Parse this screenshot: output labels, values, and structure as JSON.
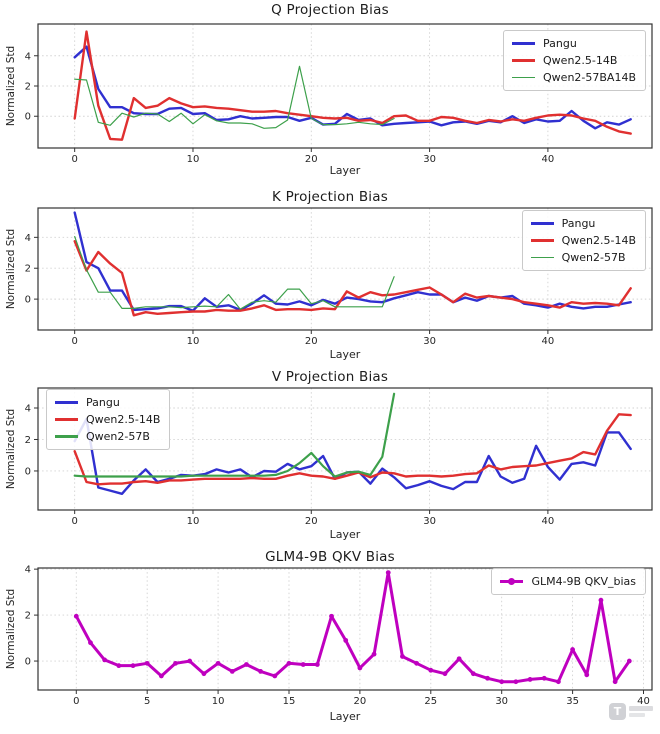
{
  "page": {
    "background": "#ffffff"
  },
  "watermark": {
    "label": "T"
  },
  "chart_data": [
    {
      "id": "q-projection-bias",
      "type": "line",
      "title": "Q Projection Bias",
      "xlabel": "Layer",
      "ylabel": "Normalized Std",
      "x_ticks": [
        0,
        10,
        20,
        30,
        40
      ],
      "y_ticks": [
        0,
        2,
        4
      ],
      "x_domain": [
        -3.1,
        48.8
      ],
      "y_domain": [
        -2.1,
        6.1
      ],
      "grid": true,
      "legend_position": "top-right",
      "series": [
        {
          "name": "Pangu",
          "color": "#3030d0",
          "width": 2.4,
          "values": [
            3.9,
            4.6,
            1.8,
            0.6,
            0.6,
            0.2,
            0.15,
            0.15,
            0.5,
            0.55,
            0.15,
            0.2,
            -0.25,
            -0.2,
            0.0,
            -0.15,
            -0.1,
            -0.05,
            -0.05,
            -0.3,
            -0.1,
            -0.55,
            -0.5,
            0.15,
            -0.25,
            -0.15,
            -0.6,
            -0.5,
            -0.45,
            -0.4,
            -0.35,
            -0.6,
            -0.4,
            -0.35,
            -0.5,
            -0.3,
            -0.4,
            0.0,
            -0.45,
            -0.2,
            -0.35,
            -0.3,
            0.35,
            -0.3,
            -0.8,
            -0.4,
            -0.55,
            -0.2
          ]
        },
        {
          "name": "Qwen2.5-14B",
          "color": "#e03030",
          "width": 2.4,
          "values": [
            -0.15,
            5.6,
            0.7,
            -1.5,
            -1.55,
            1.2,
            0.55,
            0.7,
            1.2,
            0.85,
            0.6,
            0.65,
            0.55,
            0.5,
            0.4,
            0.3,
            0.3,
            0.35,
            0.2,
            0.1,
            0.0,
            -0.1,
            -0.15,
            -0.1,
            -0.3,
            -0.25,
            -0.45,
            0.0,
            0.05,
            -0.3,
            -0.3,
            -0.05,
            -0.1,
            -0.3,
            -0.45,
            -0.25,
            -0.35,
            -0.2,
            -0.3,
            -0.1,
            0.05,
            0.1,
            0.05,
            -0.15,
            -0.3,
            -0.7,
            -1.0,
            -1.15
          ]
        },
        {
          "name": "Qwen2-57BA14B",
          "color": "#3da04b",
          "width": 1.2,
          "values": [
            2.45,
            2.4,
            -0.4,
            -0.6,
            0.2,
            -0.05,
            0.2,
            0.15,
            -0.35,
            0.2,
            -0.5,
            0.1,
            -0.3,
            -0.45,
            -0.45,
            -0.5,
            -0.8,
            -0.75,
            -0.25,
            3.3,
            -0.15,
            -0.55,
            -0.55,
            -0.5,
            -0.4,
            -0.5,
            -0.55,
            -0.15
          ]
        }
      ]
    },
    {
      "id": "k-projection-bias",
      "type": "line",
      "title": "K Projection Bias",
      "xlabel": "Layer",
      "ylabel": "Normalized Std",
      "x_ticks": [
        0,
        10,
        20,
        30,
        40
      ],
      "y_ticks": [
        0,
        2,
        4
      ],
      "x_domain": [
        -3.1,
        48.8
      ],
      "y_domain": [
        -2.0,
        5.9
      ],
      "grid": true,
      "legend_position": "top-right",
      "series": [
        {
          "name": "Pangu",
          "color": "#3030d0",
          "width": 2.4,
          "values": [
            5.6,
            2.4,
            2.0,
            0.55,
            0.55,
            -0.7,
            -0.65,
            -0.6,
            -0.45,
            -0.45,
            -0.75,
            0.05,
            -0.5,
            -0.4,
            -0.7,
            -0.3,
            0.25,
            -0.3,
            -0.35,
            -0.15,
            -0.4,
            -0.05,
            -0.3,
            0.1,
            0.0,
            -0.15,
            -0.2,
            0.05,
            0.25,
            0.45,
            0.3,
            0.3,
            -0.2,
            0.1,
            -0.1,
            0.2,
            0.1,
            0.2,
            -0.3,
            -0.4,
            -0.55,
            -0.3,
            -0.5,
            -0.6,
            -0.5,
            -0.5,
            -0.35,
            -0.2
          ]
        },
        {
          "name": "Qwen2.5-14B",
          "color": "#e03030",
          "width": 2.4,
          "values": [
            3.75,
            1.85,
            3.05,
            2.3,
            1.7,
            -1.05,
            -0.85,
            -0.95,
            -0.9,
            -0.85,
            -0.8,
            -0.8,
            -0.7,
            -0.75,
            -0.75,
            -0.6,
            -0.4,
            -0.7,
            -0.65,
            -0.65,
            -0.7,
            -0.6,
            -0.65,
            0.5,
            0.1,
            0.45,
            0.25,
            0.3,
            0.45,
            0.6,
            0.75,
            0.3,
            -0.2,
            0.35,
            0.1,
            0.2,
            0.1,
            0.0,
            -0.2,
            -0.3,
            -0.4,
            -0.55,
            -0.2,
            -0.3,
            -0.25,
            -0.3,
            -0.4,
            0.7
          ]
        },
        {
          "name": "Qwen2-57B",
          "color": "#3da04b",
          "width": 1.2,
          "values": [
            4.05,
            1.9,
            0.45,
            0.45,
            -0.6,
            -0.6,
            -0.5,
            -0.5,
            -0.5,
            -0.55,
            -0.5,
            -0.45,
            -0.5,
            0.3,
            -0.65,
            -0.2,
            -0.1,
            -0.2,
            0.65,
            0.65,
            -0.3,
            -0.1,
            -0.5,
            -0.5,
            -0.5,
            -0.5,
            -0.5,
            1.45
          ]
        }
      ]
    },
    {
      "id": "v-projection-bias",
      "type": "line",
      "title": "V Projection Bias",
      "xlabel": "Layer",
      "ylabel": "Normalized Std",
      "x_ticks": [
        0,
        10,
        20,
        30,
        40
      ],
      "y_ticks": [
        0,
        2,
        4
      ],
      "x_domain": [
        -3.1,
        48.8
      ],
      "y_domain": [
        -2.48,
        5.27
      ],
      "grid": true,
      "legend_position": "top-left",
      "series": [
        {
          "name": "Pangu",
          "color": "#3030d0",
          "width": 2.4,
          "values": [
            1.9,
            3.3,
            -1.05,
            -1.25,
            -1.45,
            -0.6,
            0.1,
            -0.7,
            -0.5,
            -0.25,
            -0.3,
            -0.2,
            0.1,
            -0.1,
            0.1,
            -0.4,
            0.0,
            -0.05,
            0.45,
            0.1,
            0.3,
            0.95,
            -0.5,
            -0.1,
            -0.05,
            -0.8,
            0.15,
            -0.4,
            -1.1,
            -0.9,
            -0.65,
            -0.95,
            -1.15,
            -0.7,
            -0.7,
            0.95,
            -0.35,
            -0.75,
            -0.5,
            1.6,
            0.25,
            -0.55,
            0.45,
            0.55,
            0.35,
            2.45,
            2.45,
            1.4
          ]
        },
        {
          "name": "Qwen2.5-14B",
          "color": "#e03030",
          "width": 2.4,
          "values": [
            1.25,
            -0.7,
            -0.85,
            -0.8,
            -0.8,
            -0.7,
            -0.65,
            -0.75,
            -0.6,
            -0.6,
            -0.55,
            -0.5,
            -0.5,
            -0.5,
            -0.5,
            -0.45,
            -0.5,
            -0.5,
            -0.3,
            -0.15,
            -0.3,
            -0.35,
            -0.5,
            -0.3,
            -0.1,
            -0.4,
            -0.1,
            -0.15,
            -0.35,
            -0.3,
            -0.3,
            -0.35,
            -0.3,
            -0.2,
            -0.15,
            0.35,
            0.1,
            0.25,
            0.3,
            0.35,
            0.5,
            0.65,
            0.8,
            1.2,
            1.05,
            2.55,
            3.6,
            3.55
          ]
        },
        {
          "name": "Qwen2-57B",
          "color": "#3da04b",
          "width": 2.2,
          "values": [
            -0.3,
            -0.35,
            -0.35,
            -0.35,
            -0.35,
            -0.35,
            -0.35,
            -0.35,
            -0.35,
            -0.35,
            -0.3,
            -0.3,
            -0.3,
            -0.3,
            -0.3,
            -0.3,
            -0.3,
            -0.25,
            0.0,
            0.5,
            1.15,
            0.3,
            -0.35,
            -0.1,
            -0.05,
            -0.25,
            0.9,
            4.9
          ]
        }
      ]
    },
    {
      "id": "glm4-9b-qkv-bias",
      "type": "line",
      "title": "GLM4-9B QKV Bias",
      "xlabel": "Layer",
      "ylabel": "Normalized Std",
      "x_ticks": [
        0,
        5,
        10,
        15,
        20,
        25,
        30,
        35,
        40
      ],
      "y_ticks": [
        0,
        2,
        4
      ],
      "x_domain": [
        -2.7,
        40.6
      ],
      "y_domain": [
        -1.26,
        4.05
      ],
      "grid": true,
      "legend_position": "top-right",
      "series": [
        {
          "name": "GLM4-9B QKV_bias",
          "color": "#bf00bf",
          "width": 3,
          "marker": true,
          "values": [
            1.95,
            0.8,
            0.05,
            -0.2,
            -0.2,
            -0.1,
            -0.65,
            -0.1,
            0.0,
            -0.55,
            -0.1,
            -0.45,
            -0.15,
            -0.45,
            -0.65,
            -0.1,
            -0.15,
            -0.15,
            1.95,
            0.9,
            -0.3,
            0.3,
            3.85,
            0.2,
            -0.1,
            -0.4,
            -0.55,
            0.1,
            -0.55,
            -0.75,
            -0.9,
            -0.9,
            -0.8,
            -0.75,
            -0.9,
            0.5,
            -0.6,
            2.65,
            -0.9,
            0.0
          ]
        }
      ]
    }
  ]
}
